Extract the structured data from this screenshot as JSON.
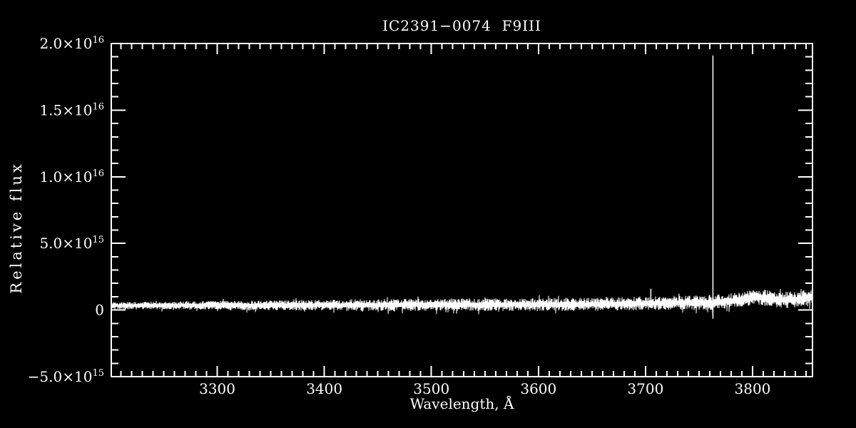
{
  "colors": {
    "background": "#000000",
    "foreground": "#ffffff"
  },
  "chart_data": {
    "type": "line",
    "title": "IC2391−0074  F9III",
    "xlabel": "Wavelength, Å",
    "ylabel": "Relative flux",
    "xlim": [
      3201,
      3856
    ],
    "ylim": [
      -5000000000000000.0,
      2e+16
    ],
    "grid": false,
    "legend": "none",
    "axis_style": "boxed-ticks-inward",
    "x_major_ticks": [
      {
        "value": 3300,
        "label": "3300"
      },
      {
        "value": 3400,
        "label": "3400"
      },
      {
        "value": 3500,
        "label": "3500"
      },
      {
        "value": 3600,
        "label": "3600"
      },
      {
        "value": 3700,
        "label": "3700"
      },
      {
        "value": 3800,
        "label": "3800"
      }
    ],
    "x_minor_step": 10,
    "y_major_ticks": [
      {
        "value": -5000000000000000.0,
        "base": "−5.0×10",
        "exp": "15"
      },
      {
        "value": 0,
        "base": "0",
        "exp": ""
      },
      {
        "value": 5000000000000000.0,
        "base": "5.0×10",
        "exp": "15"
      },
      {
        "value": 1e+16,
        "base": "1.0×10",
        "exp": "16"
      },
      {
        "value": 1.5e+16,
        "base": "1.5×10",
        "exp": "16"
      },
      {
        "value": 2e+16,
        "base": "2.0×10",
        "exp": "16"
      }
    ],
    "y_minor_step": 1000000000000000.0,
    "series": [
      {
        "name": "spectrum",
        "description": "noisy stellar continuum just above zero flux, slowly rising and getting noisier toward longer wavelengths",
        "envelope": {
          "wavelength": [
            3201,
            3260,
            3350,
            3450,
            3550,
            3650,
            3700,
            3730,
            3763,
            3785,
            3805,
            3825,
            3845,
            3856
          ],
          "center": [
            320000000000000.0,
            350000000000000.0,
            350000000000000.0,
            380000000000000.0,
            400000000000000.0,
            420000000000000.0,
            500000000000000.0,
            550000000000000.0,
            550000000000000.0,
            750000000000000.0,
            1000000000000000.0,
            750000000000000.0,
            800000000000000.0,
            950000000000000.0
          ],
          "amplitude": [
            280000000000000.0,
            300000000000000.0,
            380000000000000.0,
            450000000000000.0,
            480000000000000.0,
            500000000000000.0,
            520000000000000.0,
            550000000000000.0,
            600000000000000.0,
            550000000000000.0,
            600000000000000.0,
            600000000000000.0,
            650000000000000.0,
            700000000000000.0
          ]
        }
      }
    ],
    "spikes": [
      {
        "wavelength": 3763,
        "flux_top": 1.91e+16,
        "flux_bottom": -650000000000000.0
      },
      {
        "wavelength": 3705,
        "flux_top": 1600000000000000.0,
        "flux_bottom": 300000000000000.0
      }
    ],
    "noise_seed": 42
  }
}
